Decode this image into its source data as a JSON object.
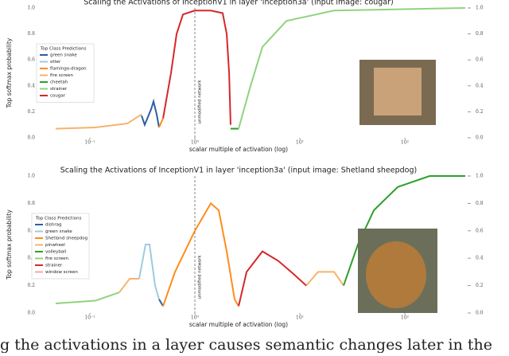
{
  "chart_data": [
    {
      "type": "line",
      "title": "Scaling the Activations of InceptionV1 in layer 'inception3a' (input image: cougar)",
      "x_label": "scalar multiple of activation (log)",
      "y_label": "Top softmax probability",
      "annotation": "unmodified network",
      "annotation_x": 1,
      "legend_title": "Top Class Predictions",
      "legend": "upper left",
      "x_scale": "log",
      "xlim": [
        0.0433,
        376
      ],
      "xticks": [
        {
          "value": 0.1,
          "label": "10⁻¹"
        },
        {
          "value": 1,
          "label": "10⁰"
        },
        {
          "value": 10,
          "label": "10¹"
        },
        {
          "value": 100,
          "label": "10²"
        }
      ],
      "ylim": [
        0,
        1
      ],
      "yticks": [
        {
          "value": 0,
          "label": "0.0"
        },
        {
          "value": 0.2,
          "label": "0.2"
        },
        {
          "value": 0.4,
          "label": "0.4"
        },
        {
          "value": 0.6,
          "label": "0.6"
        },
        {
          "value": 0.8,
          "label": "0.8"
        },
        {
          "value": 1,
          "label": "1.0"
        }
      ],
      "series": [
        {
          "name": "green snake",
          "color": "#2c5fa3",
          "x": [
            0.311,
            0.333,
            0.383,
            0.404,
            0.433,
            0.456
          ],
          "values": [
            0.17,
            0.1,
            0.22,
            0.28,
            0.18,
            0.08
          ]
        },
        {
          "name": "otter",
          "color": "#9ecae1",
          "x": [],
          "values": []
        },
        {
          "name": "flamingo-dragon",
          "color": "#ff8c1a",
          "x": [
            0.456,
            0.498
          ],
          "values": [
            0.08,
            0.15
          ]
        },
        {
          "name": "fire screen",
          "color": "#f7b26b",
          "x": [
            0.0472,
            0.113,
            0.227,
            0.311
          ],
          "values": [
            0.07,
            0.08,
            0.11,
            0.18
          ]
        },
        {
          "name": "cheetah",
          "color": "#2ca02c",
          "x": [
            2.19,
            2.61
          ],
          "values": [
            0.07,
            0.07
          ]
        },
        {
          "name": "strainer",
          "color": "#8fd37f",
          "x": [
            2.61,
            3.39,
            4.4,
            7.44,
            21.1,
            376
          ],
          "values": [
            0.07,
            0.4,
            0.7,
            0.9,
            0.98,
            1.0
          ]
        },
        {
          "name": "cougar",
          "color": "#d62728",
          "x": [
            0.498,
            0.593,
            0.67,
            0.77,
            1,
            1.42,
            1.84,
            2.01,
            2.12,
            2.19
          ],
          "values": [
            0.15,
            0.5,
            0.8,
            0.95,
            0.98,
            0.98,
            0.96,
            0.8,
            0.5,
            0.1
          ]
        }
      ]
    },
    {
      "type": "line",
      "title": "Scaling the Activations of InceptionV1 in layer 'inception3a' (input image: Shetland sheepdog)",
      "x_label": "scalar multiple of activation (log)",
      "y_label": "Top softmax probability",
      "annotation": "unmodified network",
      "annotation_x": 1,
      "legend_title": "Top Class Predictions",
      "legend": "upper left",
      "x_scale": "log",
      "xlim": [
        0.0433,
        376
      ],
      "xticks": [
        {
          "value": 0.1,
          "label": "10⁻¹"
        },
        {
          "value": 1,
          "label": "10⁰"
        },
        {
          "value": 10,
          "label": "10¹"
        },
        {
          "value": 100,
          "label": "10²"
        }
      ],
      "ylim": [
        0,
        1
      ],
      "yticks": [
        {
          "value": 0,
          "label": "0.0"
        },
        {
          "value": 0.2,
          "label": "0.2"
        },
        {
          "value": 0.4,
          "label": "0.4"
        },
        {
          "value": 0.6,
          "label": "0.6"
        },
        {
          "value": 0.8,
          "label": "0.8"
        },
        {
          "value": 1,
          "label": "1.0"
        }
      ],
      "series": [
        {
          "name": "dishrag",
          "color": "#2c5fa3",
          "x": [
            0.456,
            0.498
          ],
          "values": [
            0.1,
            0.05
          ]
        },
        {
          "name": "green snake",
          "color": "#9ecae1",
          "x": [
            0.295,
            0.339,
            0.37,
            0.418,
            0.456
          ],
          "values": [
            0.25,
            0.5,
            0.5,
            0.2,
            0.1
          ]
        },
        {
          "name": "Shetland sheepdog",
          "color": "#ff8c1a",
          "x": [
            0.498,
            0.647,
            1,
            1.418,
            1.687,
            2.01,
            2.39,
            2.61
          ],
          "values": [
            0.05,
            0.3,
            0.6,
            0.8,
            0.75,
            0.45,
            0.1,
            0.05
          ]
        },
        {
          "name": "pinwheel",
          "color": "#f7b26b",
          "x": [
            0.1906,
            0.239,
            0.295,
            5,
            11.5,
            14.9,
            21.2,
            26.1
          ],
          "values": [
            0.15,
            0.25,
            0.25,
            null,
            0.2,
            0.3,
            0.3,
            0.2
          ]
        },
        {
          "name": "volleyball",
          "color": "#2ca02c",
          "x": [
            26.1,
            35.7,
            50.7,
            85.5,
            172,
            376
          ],
          "values": [
            0.2,
            0.5,
            0.75,
            0.92,
            1.0,
            1.0
          ]
        },
        {
          "name": "fire screen",
          "color": "#8fd37f",
          "x": [
            0.0472,
            0.113,
            0.1906
          ],
          "values": [
            0.07,
            0.09,
            0.15
          ]
        },
        {
          "name": "strainer",
          "color": "#d62728",
          "x": [
            2.61,
            3.11,
            4.4,
            6.24,
            8.85,
            11.5
          ],
          "values": [
            0.05,
            0.3,
            0.45,
            0.38,
            0.28,
            0.2
          ]
        },
        {
          "name": "window screen",
          "color": "#f4a6a6",
          "x": [],
          "values": []
        }
      ]
    }
  ],
  "caption": "g the activations in a layer causes semantic changes later in the"
}
